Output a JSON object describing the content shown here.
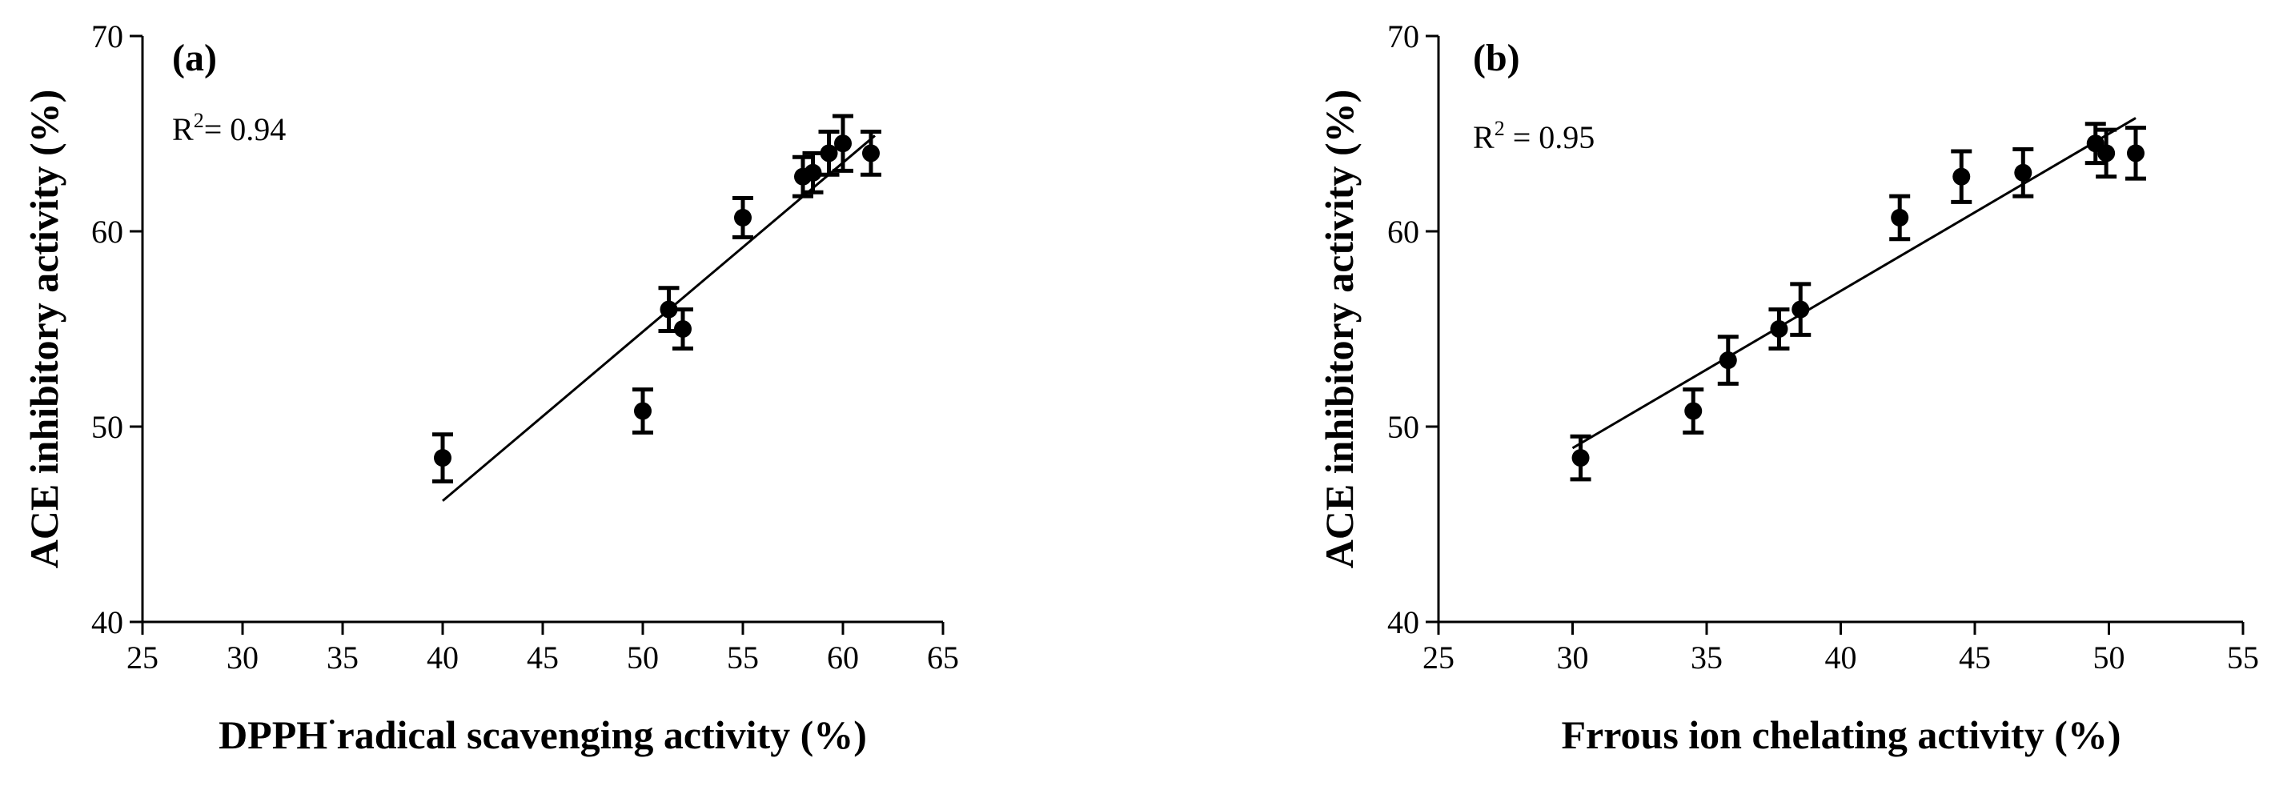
{
  "chart_data": [
    {
      "type": "scatter",
      "panel_label": "(a)",
      "annotation": {
        "base": "R",
        "sup": "2",
        "rest": "= 0.94",
        "r2": 0.94
      },
      "xlabel": {
        "pre": "DPPH",
        "sup": "·",
        "post": "radical scavenging activity (%)"
      },
      "ylabel": "ACE inhibitory activity (%)",
      "xlim": [
        25,
        65
      ],
      "ylim": [
        40,
        70
      ],
      "xticks": [
        "25",
        "30",
        "35",
        "40",
        "45",
        "50",
        "55",
        "60",
        "65"
      ],
      "yticks": [
        "40",
        "50",
        "60",
        "70"
      ],
      "points": [
        {
          "x": 40.0,
          "y": 48.4,
          "err": 1.2
        },
        {
          "x": 50.0,
          "y": 50.8,
          "err": 1.1
        },
        {
          "x": 51.3,
          "y": 56.0,
          "err": 1.1
        },
        {
          "x": 52.0,
          "y": 55.0,
          "err": 1.0
        },
        {
          "x": 55.0,
          "y": 60.7,
          "err": 1.0
        },
        {
          "x": 58.0,
          "y": 62.8,
          "err": 1.0
        },
        {
          "x": 58.5,
          "y": 63.0,
          "err": 1.0
        },
        {
          "x": 59.3,
          "y": 64.0,
          "err": 1.1
        },
        {
          "x": 60.0,
          "y": 64.5,
          "err": 1.4
        },
        {
          "x": 61.4,
          "y": 64.0,
          "err": 1.1
        }
      ],
      "fit_line": {
        "x": [
          40.0,
          61.6
        ],
        "y": [
          46.2,
          64.9
        ]
      }
    },
    {
      "type": "scatter",
      "panel_label": "(b)",
      "annotation": {
        "base": "R",
        "sup": "2",
        "rest": " = 0.95",
        "r2": 0.95
      },
      "xlabel": {
        "pre": "Frrous ion chelating activity (%)",
        "sup": "",
        "post": ""
      },
      "ylabel": "ACE inhibitory activity (%)",
      "xlim": [
        25,
        55
      ],
      "ylim": [
        40,
        70
      ],
      "xticks": [
        "25",
        "30",
        "35",
        "40",
        "45",
        "50",
        "55"
      ],
      "yticks": [
        "40",
        "50",
        "60",
        "70"
      ],
      "points": [
        {
          "x": 30.3,
          "y": 48.4,
          "err": 1.1
        },
        {
          "x": 34.5,
          "y": 50.8,
          "err": 1.1
        },
        {
          "x": 35.8,
          "y": 53.4,
          "err": 1.2
        },
        {
          "x": 37.7,
          "y": 55.0,
          "err": 1.0
        },
        {
          "x": 38.5,
          "y": 56.0,
          "err": 1.3
        },
        {
          "x": 42.2,
          "y": 60.7,
          "err": 1.1
        },
        {
          "x": 44.5,
          "y": 62.8,
          "err": 1.3
        },
        {
          "x": 46.8,
          "y": 63.0,
          "err": 1.2
        },
        {
          "x": 49.5,
          "y": 64.5,
          "err": 1.0
        },
        {
          "x": 49.9,
          "y": 64.0,
          "err": 1.2
        },
        {
          "x": 51.0,
          "y": 64.0,
          "err": 1.3
        }
      ],
      "fit_line": {
        "x": [
          30.0,
          51.0
        ],
        "y": [
          48.9,
          65.8
        ]
      }
    }
  ]
}
